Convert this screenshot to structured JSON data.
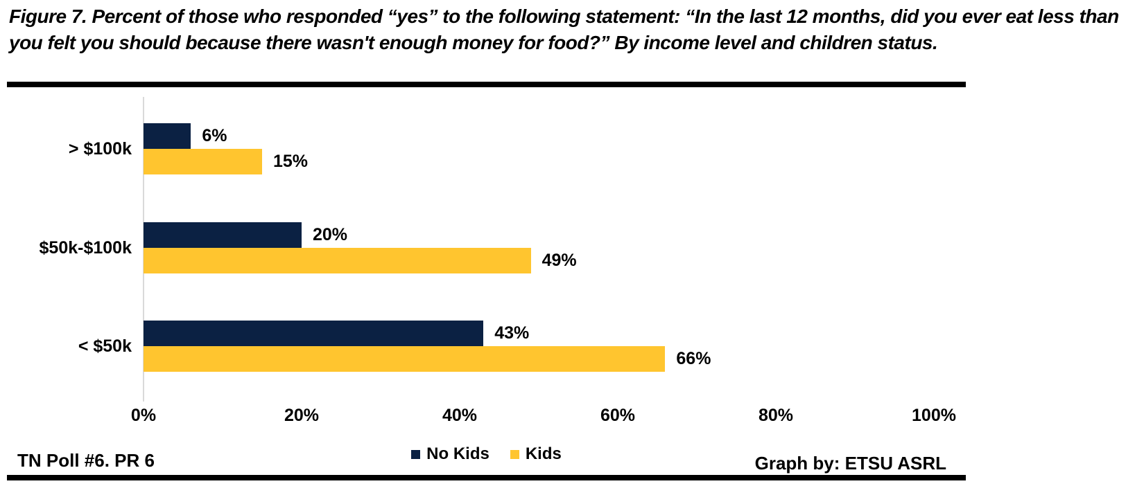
{
  "title": {
    "line1": "Figure 7. Percent of those who responded “yes” to the following statement: “In the last 12 months, did you ever eat less than",
    "line2": "you felt you should because there wasn't enough money for food?” By income level and children status."
  },
  "chart_data": {
    "type": "bar",
    "orientation": "horizontal",
    "categories": [
      "> $100k",
      "$50k-$100k",
      "< $50k"
    ],
    "series": [
      {
        "name": "No Kids",
        "color": "#0B2143",
        "values": [
          6,
          20,
          43
        ]
      },
      {
        "name": "Kids",
        "color": "#FFC52F",
        "values": [
          15,
          49,
          66
        ]
      }
    ],
    "value_suffix": "%",
    "xlim": [
      0,
      100
    ],
    "xtick_values": [
      0,
      20,
      40,
      60,
      80,
      100
    ],
    "xticks": [
      "0%",
      "20%",
      "40%",
      "60%",
      "80%",
      "100%"
    ],
    "grid": false,
    "legend_position": "bottom-center"
  },
  "footer": {
    "left": "TN Poll #6. PR 6",
    "right": "Graph by: ETSU ASRL"
  },
  "colors": {
    "no_kids": "#0B2143",
    "kids": "#FFC52F",
    "axis_line": "#D9D9D9",
    "rule": "#000000",
    "background": "#FFFFFF"
  }
}
